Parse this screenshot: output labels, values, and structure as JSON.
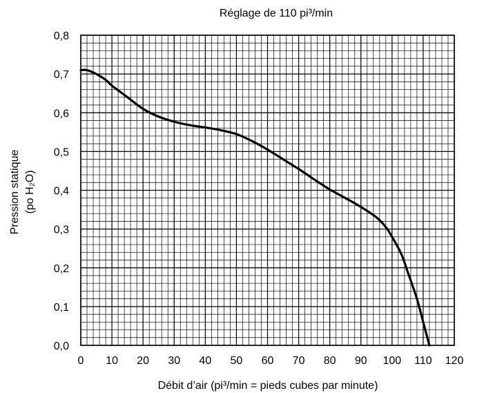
{
  "chart_data": {
    "type": "line",
    "title": "Réglage de 110 pi³/min",
    "xlabel": "Débit d’air (pi³/min = pieds cubes par minute)",
    "ylabel_line1": "Pression statique",
    "ylabel_line2": "(po H₂O)",
    "xlim": [
      0,
      120
    ],
    "ylim": [
      0,
      0.8
    ],
    "x_ticks": [
      0,
      10,
      20,
      30,
      40,
      50,
      60,
      70,
      80,
      90,
      100,
      110,
      120
    ],
    "x_tick_labels": [
      "0",
      "10",
      "20",
      "30",
      "40",
      "50",
      "60",
      "70",
      "80",
      "90",
      "100",
      "110",
      "120"
    ],
    "y_ticks": [
      0,
      0.1,
      0.2,
      0.3,
      0.4,
      0.5,
      0.6,
      0.7,
      0.8
    ],
    "y_tick_labels": [
      "0,0",
      "0,1",
      "0,2",
      "0,3",
      "0,4",
      "0,5",
      "0,6",
      "0,7",
      "0,8"
    ],
    "grid": true,
    "minor_grid": {
      "x_step": 2,
      "y_step": 0.02
    },
    "series": [
      {
        "color": "#000000",
        "x": [
          0,
          2,
          5,
          8,
          10,
          15,
          20,
          25,
          30,
          35,
          40,
          45,
          50,
          55,
          60,
          65,
          70,
          75,
          80,
          85,
          90,
          95,
          98,
          100,
          103,
          105,
          108,
          110,
          112
        ],
        "y": [
          0.71,
          0.71,
          0.7,
          0.685,
          0.67,
          0.64,
          0.61,
          0.59,
          0.577,
          0.568,
          0.562,
          0.555,
          0.545,
          0.527,
          0.505,
          0.48,
          0.455,
          0.428,
          0.402,
          0.38,
          0.357,
          0.33,
          0.305,
          0.28,
          0.235,
          0.19,
          0.12,
          0.06,
          0.0
        ]
      }
    ]
  }
}
